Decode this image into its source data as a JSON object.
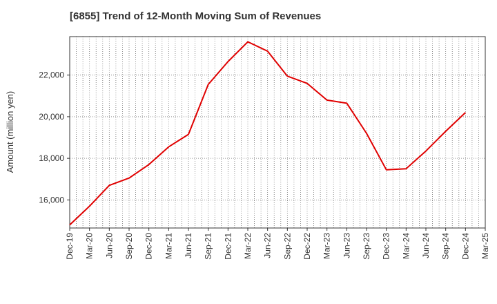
{
  "chart_data": {
    "type": "line",
    "title": "[6855]  Trend of 12-Month Moving Sum of Revenues",
    "xlabel": "",
    "ylabel": "Amount (million yen)",
    "x_tick_labels": [
      "Dec-19",
      "Mar-20",
      "Jun-20",
      "Sep-20",
      "Dec-20",
      "Mar-21",
      "Jun-21",
      "Sep-21",
      "Dec-21",
      "Mar-22",
      "Jun-22",
      "Sep-22",
      "Dec-22",
      "Mar-23",
      "Jun-23",
      "Sep-23",
      "Dec-23",
      "Mar-24",
      "Jun-24",
      "Sep-24",
      "Dec-24",
      "Mar-25"
    ],
    "y_ticks": [
      16000,
      18000,
      20000,
      22000
    ],
    "y_tick_labels": [
      "16,000",
      "18,000",
      "20,000",
      "22,000"
    ],
    "ylim": [
      14650,
      23850
    ],
    "grid": true,
    "series": [
      {
        "color": "#e00000",
        "x": [
          "Dec-19",
          "Mar-20",
          "Jun-20",
          "Sep-20",
          "Dec-20",
          "Mar-21",
          "Jun-21",
          "Sep-21",
          "Dec-21",
          "Mar-22",
          "Jun-22",
          "Sep-22",
          "Dec-22",
          "Mar-23",
          "Jun-23",
          "Sep-23",
          "Dec-23",
          "Mar-24",
          "Jun-24",
          "Sep-24",
          "Dec-24"
        ],
        "values": [
          14800,
          15700,
          16700,
          17050,
          17700,
          18550,
          19150,
          21550,
          22650,
          23600,
          23150,
          21950,
          21600,
          20800,
          20650,
          19200,
          17450,
          17500,
          18350,
          19300,
          20200
        ]
      }
    ]
  }
}
